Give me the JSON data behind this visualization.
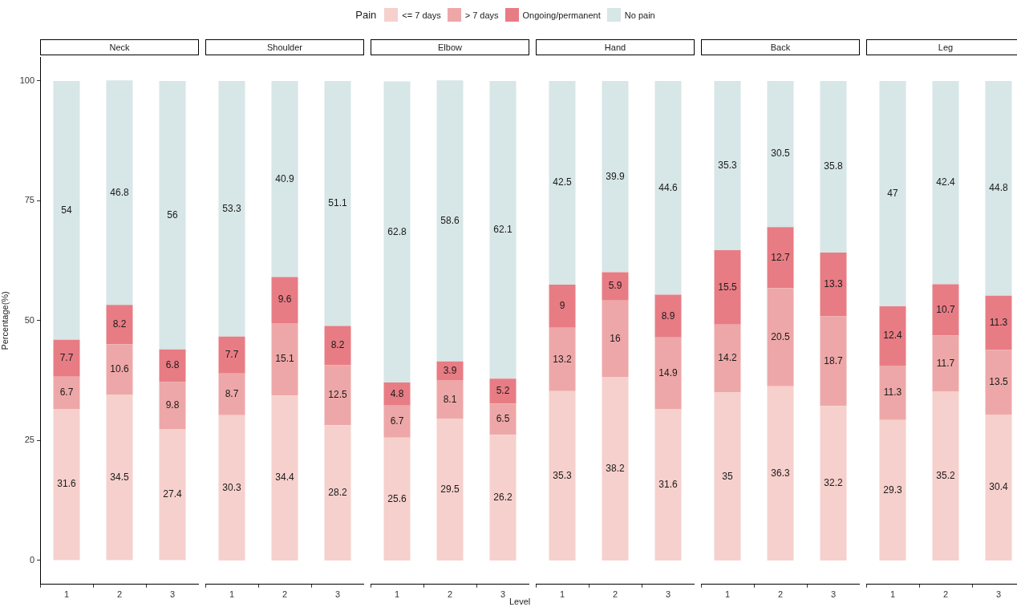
{
  "chart_data": [
    {
      "type": "bar",
      "stacked": true,
      "title": "Neck",
      "categories": [
        "1",
        "2",
        "3"
      ],
      "ylim": [
        -5,
        105
      ],
      "yticks": [
        0,
        25,
        50,
        75,
        100
      ],
      "ylabel": "Percentage(%)",
      "legend_title": "Pain",
      "legend": "top",
      "data_labels": true,
      "series": [
        {
          "name": "<= 7 days",
          "color": "#f6d0cc",
          "values": [
            31.6,
            34.5,
            27.4
          ]
        },
        {
          "name": "> 7 days",
          "color": "#eea7a8",
          "values": [
            6.7,
            10.6,
            9.8
          ]
        },
        {
          "name": "Ongoing/permanent",
          "color": "#e87c84",
          "values": [
            7.7,
            8.2,
            6.8
          ]
        },
        {
          "name": "No pain",
          "color": "#d7e6e6",
          "values": [
            54,
            46.8,
            56
          ]
        }
      ]
    },
    {
      "type": "bar",
      "stacked": true,
      "title": "Shoulder",
      "categories": [
        "1",
        "2",
        "3"
      ],
      "tick_labels": "x",
      "data_labels": true,
      "series": [
        {
          "color": "#f6d0cc",
          "values": [
            30.3,
            34.4,
            28.2
          ]
        },
        {
          "color": "#eea7a8",
          "values": [
            8.7,
            15.1,
            12.5
          ]
        },
        {
          "color": "#e87c84",
          "values": [
            7.7,
            9.6,
            8.2
          ]
        },
        {
          "color": "#d7e6e6",
          "values": [
            53.3,
            40.9,
            51.1
          ]
        }
      ]
    },
    {
      "type": "bar",
      "stacked": true,
      "title": "Elbow",
      "categories": [
        "1",
        "2",
        "3"
      ],
      "xlabel": "Level",
      "tick_labels": "x",
      "data_labels": true,
      "series": [
        {
          "color": "#f6d0cc",
          "values": [
            25.6,
            29.5,
            26.2
          ]
        },
        {
          "color": "#eea7a8",
          "values": [
            6.7,
            8.1,
            6.5
          ]
        },
        {
          "color": "#e87c84",
          "values": [
            4.8,
            3.9,
            5.2
          ]
        },
        {
          "color": "#d7e6e6",
          "values": [
            62.8,
            58.6,
            62.1
          ]
        }
      ]
    },
    {
      "type": "bar",
      "stacked": true,
      "title": "Hand",
      "categories": [
        "1",
        "2",
        "3"
      ],
      "tick_labels": "x",
      "data_labels": true,
      "series": [
        {
          "color": "#f6d0cc",
          "values": [
            35.3,
            38.2,
            31.6
          ]
        },
        {
          "color": "#eea7a8",
          "values": [
            13.2,
            16,
            14.9
          ]
        },
        {
          "color": "#e87c84",
          "values": [
            9,
            5.9,
            8.9
          ]
        },
        {
          "color": "#d7e6e6",
          "values": [
            42.5,
            39.9,
            44.6
          ]
        }
      ]
    },
    {
      "type": "bar",
      "stacked": true,
      "title": "Back",
      "categories": [
        "1",
        "2",
        "3"
      ],
      "tick_labels": "x",
      "data_labels": true,
      "series": [
        {
          "color": "#f6d0cc",
          "values": [
            35,
            36.3,
            32.2
          ]
        },
        {
          "color": "#eea7a8",
          "values": [
            14.2,
            20.5,
            18.7
          ]
        },
        {
          "color": "#e87c84",
          "values": [
            15.5,
            12.7,
            13.3
          ]
        },
        {
          "color": "#d7e6e6",
          "values": [
            35.3,
            30.5,
            35.8
          ]
        }
      ]
    },
    {
      "type": "bar",
      "stacked": true,
      "title": "Leg",
      "categories": [
        "1",
        "2",
        "3"
      ],
      "tick_labels": "x",
      "data_labels": true,
      "series": [
        {
          "color": "#f6d0cc",
          "values": [
            29.3,
            35.2,
            30.4
          ]
        },
        {
          "color": "#eea7a8",
          "values": [
            11.3,
            11.7,
            13.5
          ]
        },
        {
          "color": "#e87c84",
          "values": [
            12.4,
            10.7,
            11.3
          ]
        },
        {
          "color": "#d7e6e6",
          "values": [
            47,
            42.4,
            44.8
          ]
        }
      ]
    }
  ]
}
